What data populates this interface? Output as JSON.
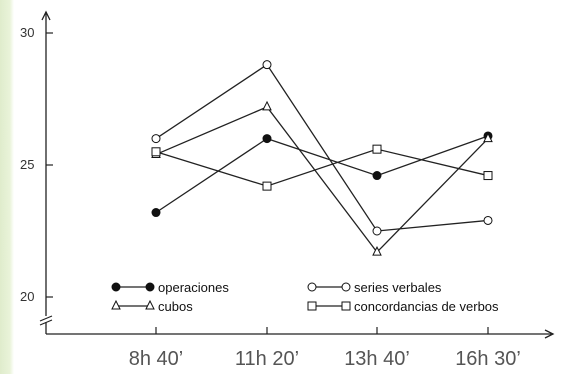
{
  "chart_data": {
    "type": "line",
    "title": "",
    "xlabel": "",
    "ylabel": "",
    "categories": [
      "8h 40’",
      "11h 20’",
      "13h 40’",
      "16h 30’"
    ],
    "ylim": [
      20,
      30
    ],
    "yticks": [
      20,
      25,
      30
    ],
    "grid": false,
    "legend_position": "bottom",
    "series": [
      {
        "name": "operaciones",
        "marker": "filled-circle",
        "values": [
          23.2,
          26.0,
          24.6,
          26.1
        ]
      },
      {
        "name": "series verbales",
        "marker": "open-circle",
        "values": [
          26.0,
          28.8,
          22.5,
          22.9
        ]
      },
      {
        "name": "cubos",
        "marker": "triangle",
        "values": [
          25.4,
          27.2,
          21.7,
          26.0
        ]
      },
      {
        "name": "concordancias de verbos",
        "marker": "square",
        "values": [
          25.5,
          24.2,
          25.6,
          24.6
        ]
      }
    ]
  }
}
